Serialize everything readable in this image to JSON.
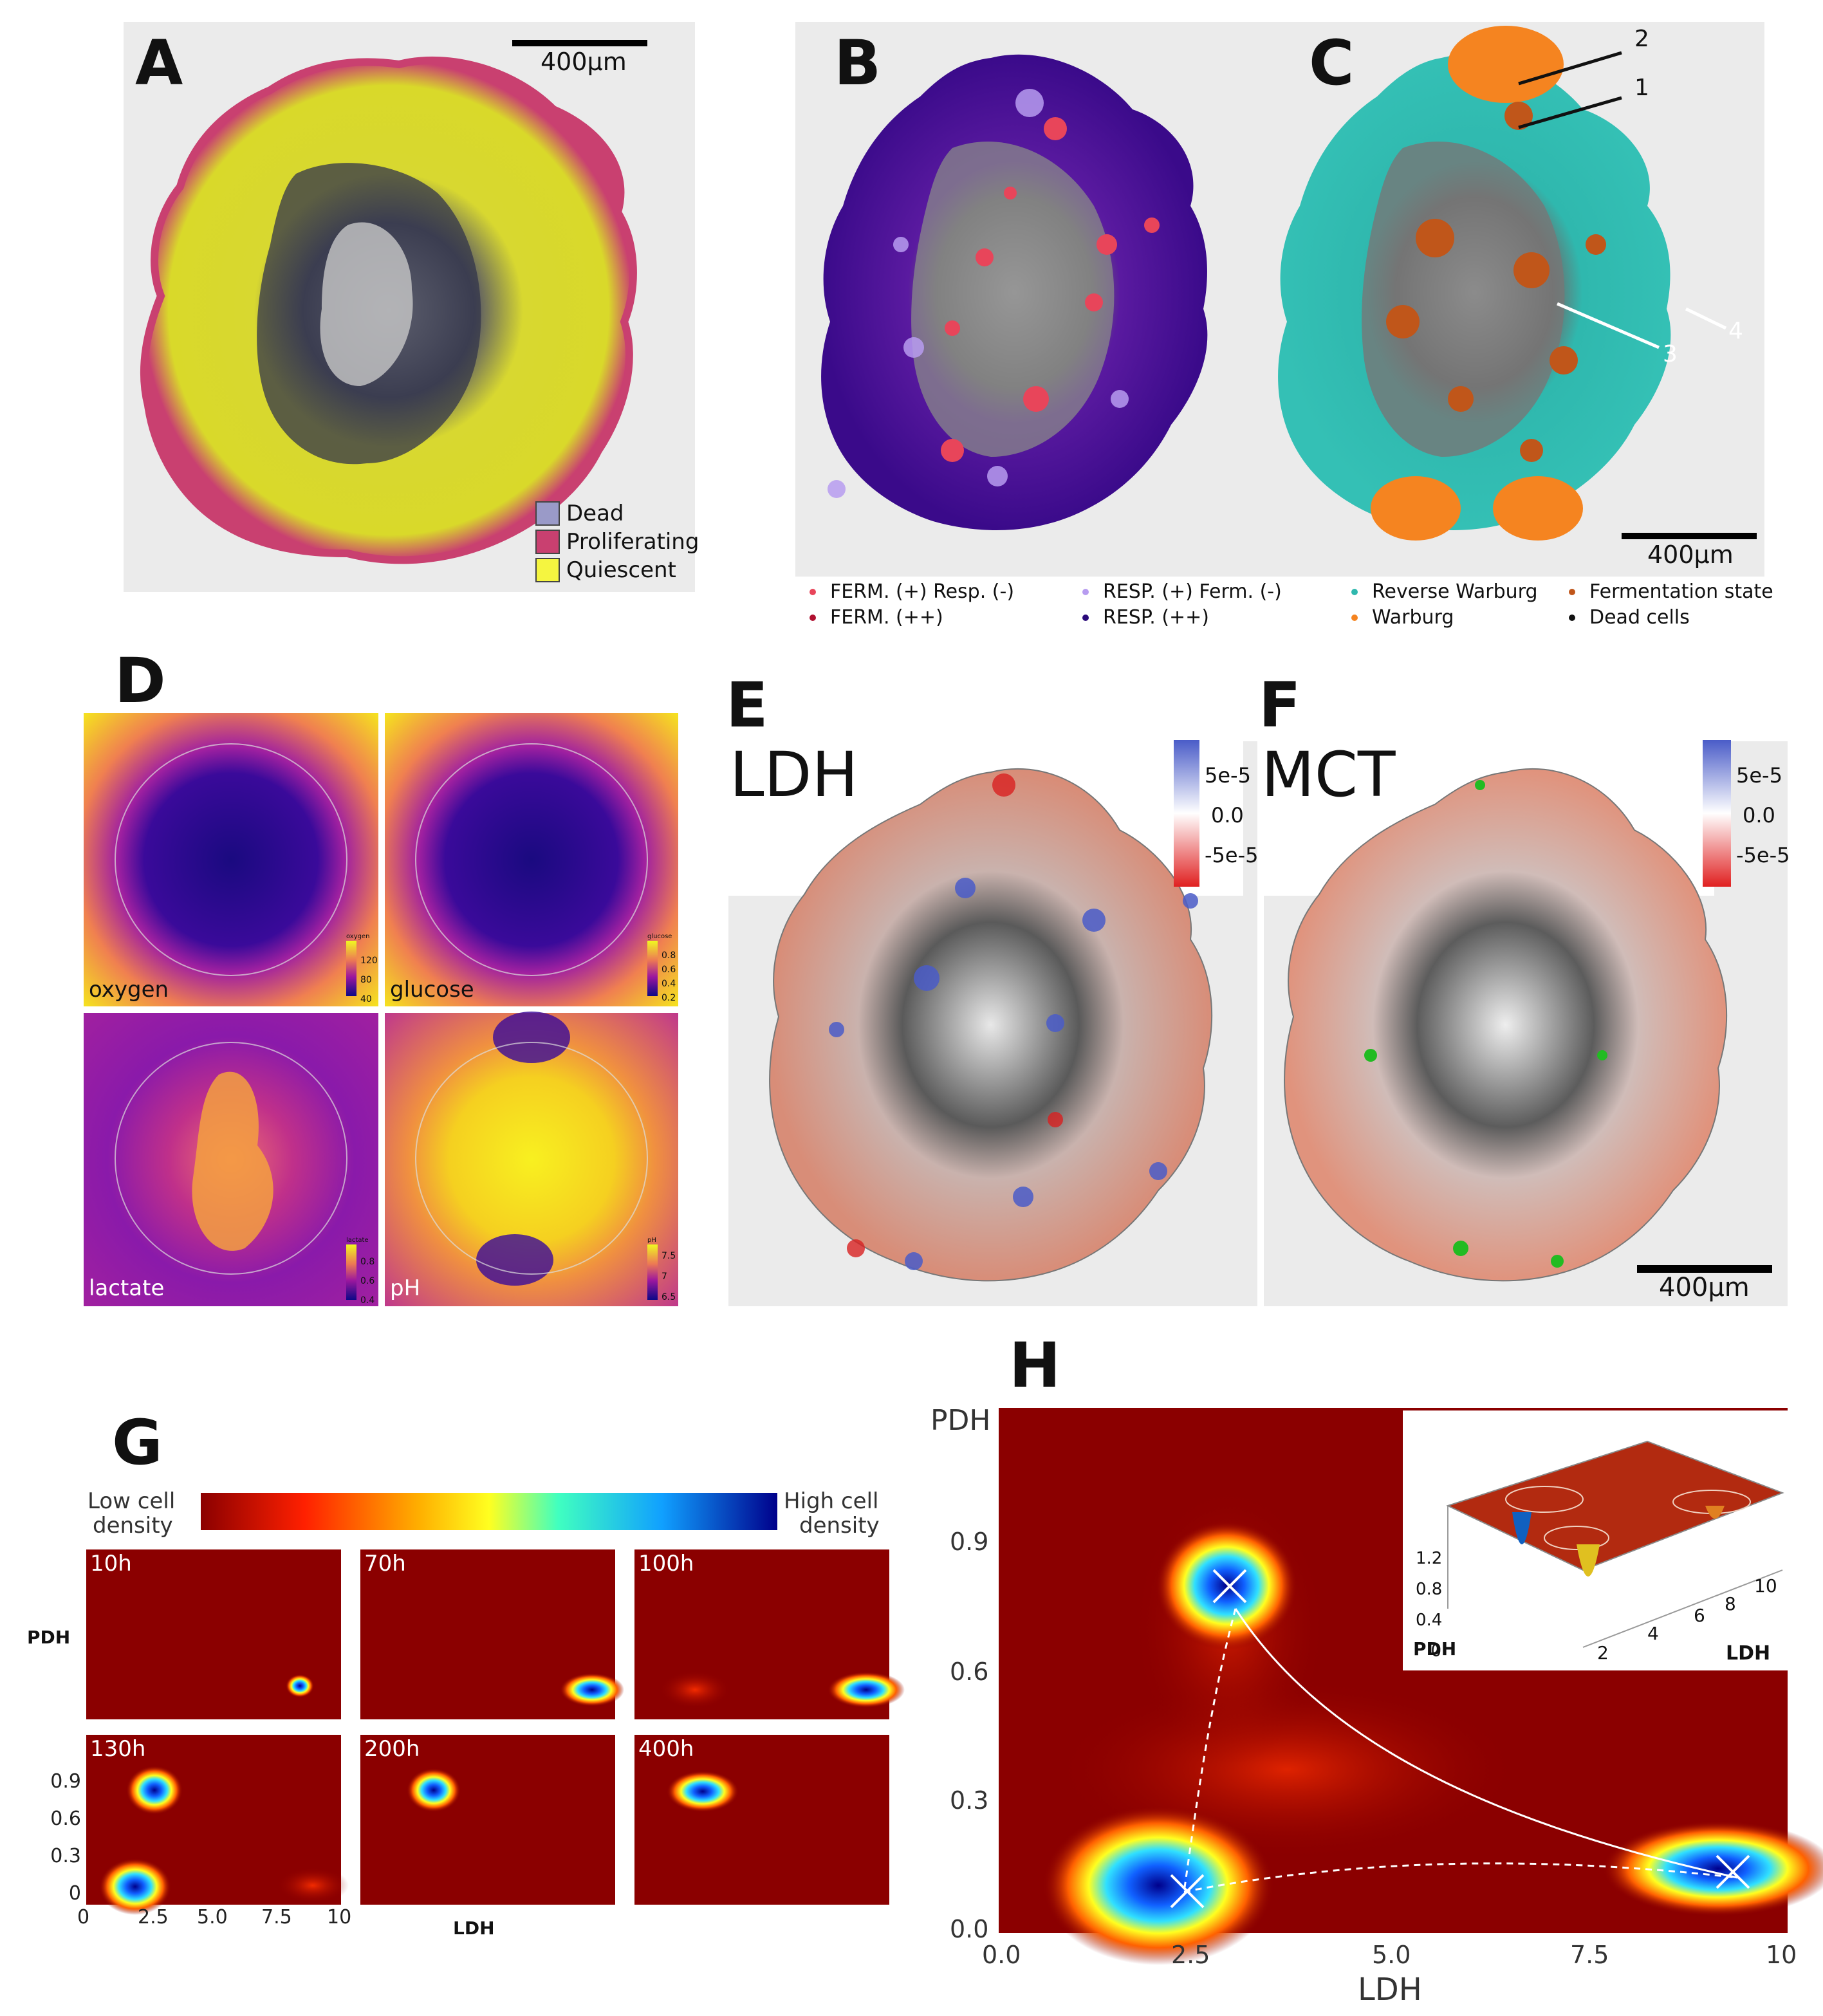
{
  "colors": {
    "dead": "#3a3a52",
    "proliferating": "#c94070",
    "quiescent": "#e6e61a",
    "ferm_plus": "#e8455a",
    "ferm_pp": "#b01030",
    "resp_plus": "#b79cf0",
    "resp_pp": "#3a0a8a",
    "reverse_warburg": "#2fb8ae",
    "warburg": "#f58420",
    "fermentation_state": "#c0561a",
    "dead_cells": "#111111",
    "density_low": "#8b0000",
    "density_high": "#00008b"
  },
  "panels": {
    "a": {
      "letter": "A",
      "scalebar": "400µm",
      "legend": [
        {
          "label": "Dead",
          "color": "#9a9ac8"
        },
        {
          "label": "Proliferating",
          "color": "#c94070"
        },
        {
          "label": "Quiescent",
          "color": "#f5f540"
        }
      ]
    },
    "b": {
      "letter": "B"
    },
    "c": {
      "letter": "C",
      "scalebar": "400µm",
      "callouts": [
        "2",
        "1",
        "3",
        "4"
      ]
    },
    "bc_legend": [
      {
        "label": "FERM. (+) Resp. (-)",
        "color": "#e8455a"
      },
      {
        "label": "FERM. (++)",
        "color": "#b01030"
      },
      {
        "label": "RESP. (+) Ferm. (-)",
        "color": "#b79cf0"
      },
      {
        "label": "RESP. (++)",
        "color": "#2a0a7a"
      },
      {
        "label": "Reverse Warburg",
        "color": "#2fb8ae"
      },
      {
        "label": "Warburg",
        "color": "#f58420"
      },
      {
        "label": "Fermentation state",
        "color": "#c0561a"
      },
      {
        "label": "Dead cells",
        "color": "#111111"
      }
    ],
    "d": {
      "letter": "D",
      "maps": [
        {
          "name": "oxygen",
          "scale_title": "oxygen",
          "ticks": [
            "120",
            "80",
            "40"
          ]
        },
        {
          "name": "glucose",
          "scale_title": "glucose",
          "ticks": [
            "0.8",
            "0.6",
            "0.4",
            "0.2"
          ]
        },
        {
          "name": "lactate",
          "scale_title": "lactate",
          "ticks": [
            "0.8",
            "0.6",
            "0.4"
          ]
        },
        {
          "name": "pH",
          "scale_title": "pH",
          "ticks": [
            "7.5",
            "7",
            "6.5"
          ]
        }
      ]
    },
    "e": {
      "letter": "E",
      "title": "LDH",
      "ticks": [
        "5e-5",
        "0.0",
        "-5e-5"
      ]
    },
    "f": {
      "letter": "F",
      "title": "MCT",
      "ticks": [
        "5e-5",
        "0.0",
        "-5e-5"
      ],
      "scalebar": "400µm"
    },
    "g": {
      "letter": "G",
      "colorbar_low": "Low cell density",
      "colorbar_low_l1": "Low cell",
      "colorbar_low_l2": "density",
      "colorbar_high_l1": "High cell",
      "colorbar_high_l2": "density",
      "ylabel": "PDH",
      "xlabel": "LDH",
      "times": [
        "10h",
        "70h",
        "100h",
        "130h",
        "200h",
        "400h"
      ],
      "yticks": [
        "0.9",
        "0.6",
        "0.3",
        "0"
      ],
      "xticks": [
        "0",
        "2.5",
        "5.0",
        "7.5",
        "10"
      ]
    },
    "h": {
      "letter": "H",
      "ylabel": "PDH",
      "xlabel": "LDH",
      "yticks": [
        "0.9",
        "0.6",
        "0.3",
        "0.0"
      ],
      "xticks": [
        "0.0",
        "2.5",
        "5.0",
        "7.5",
        "10"
      ],
      "inset": {
        "zticks": [
          "1.2",
          "0.8",
          "0.4",
          "0"
        ],
        "xticks": [
          "2",
          "4",
          "6",
          "8",
          "10"
        ],
        "ylabel": "PDH",
        "xlabel": "LDH"
      }
    }
  }
}
